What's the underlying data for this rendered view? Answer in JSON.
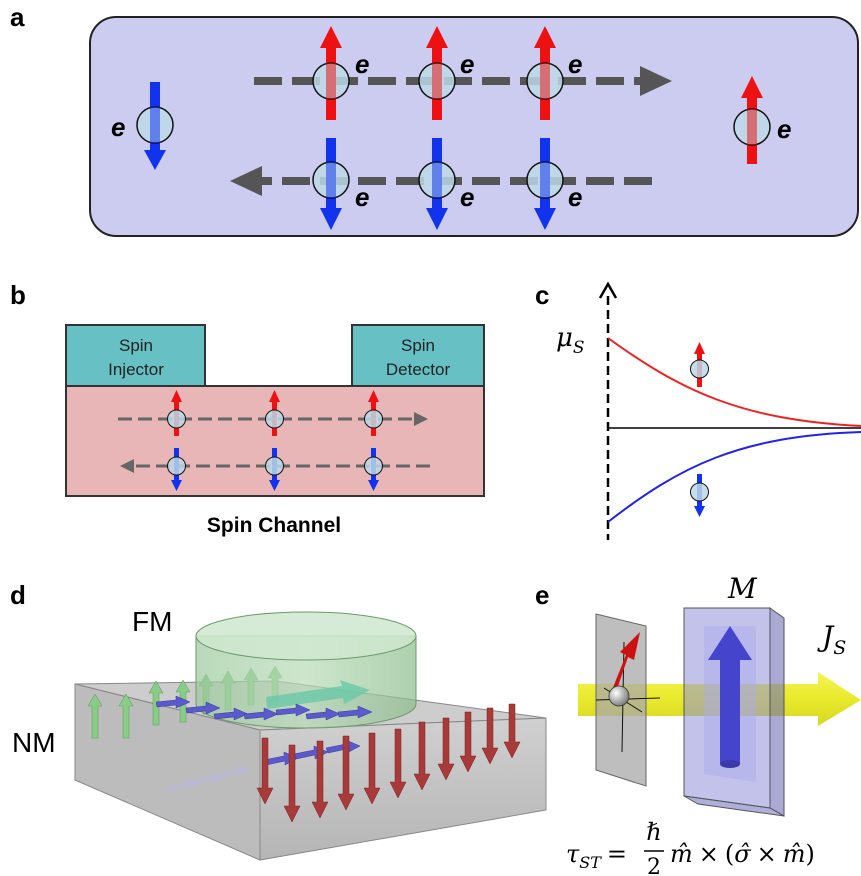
{
  "panels": {
    "a": {
      "label": "a",
      "electron_symbol": "e",
      "colors": {
        "background": "#ccccf0",
        "spin_up": "#ee1111",
        "spin_down": "#1133ee",
        "flow_arrow": "#555555",
        "electron_fill": "#bcd8e8"
      }
    },
    "b": {
      "label": "b",
      "injector_line1": "Spin",
      "injector_line2": "Injector",
      "detector_line1": "Spin",
      "detector_line2": "Detector",
      "channel_caption": "Spin Channel",
      "colors": {
        "contact": "#66c0c4",
        "channel": "#e8b6b6"
      }
    },
    "c": {
      "label": "c",
      "mu_symbol": "μ",
      "mu_subscript": "S",
      "colors": {
        "spin_up_curve": "#ee2222",
        "spin_down_curve": "#2222ee"
      }
    },
    "d": {
      "label": "d",
      "fm_label": "FM",
      "nm_label": "NM",
      "colors": {
        "fm": "#9ccc9c",
        "nm": "#b4b4b4",
        "left_arrows": "#88cc88",
        "right_arrows": "#a83a3a",
        "flow_arrows": "#5a5acc"
      }
    },
    "e": {
      "label": "e",
      "magnet_label": "M",
      "current_symbol": "J",
      "current_subscript": "S",
      "torque_formula": {
        "tau": "τ",
        "tau_subscript": "ST",
        "equals": "=",
        "numerator": "ℏ",
        "denominator": "2",
        "m_hat": "m̂",
        "cross1": "×",
        "open_paren": "(",
        "sigma_hat": "σ̂",
        "cross2": "×",
        "m_hat2": "m̂",
        "close_paren": ")"
      },
      "colors": {
        "beam": "#eeee22",
        "magnet": "#8f8fd8",
        "magnet_arrow": "#4444cc",
        "spin_arrow": "#cc1111"
      }
    }
  }
}
